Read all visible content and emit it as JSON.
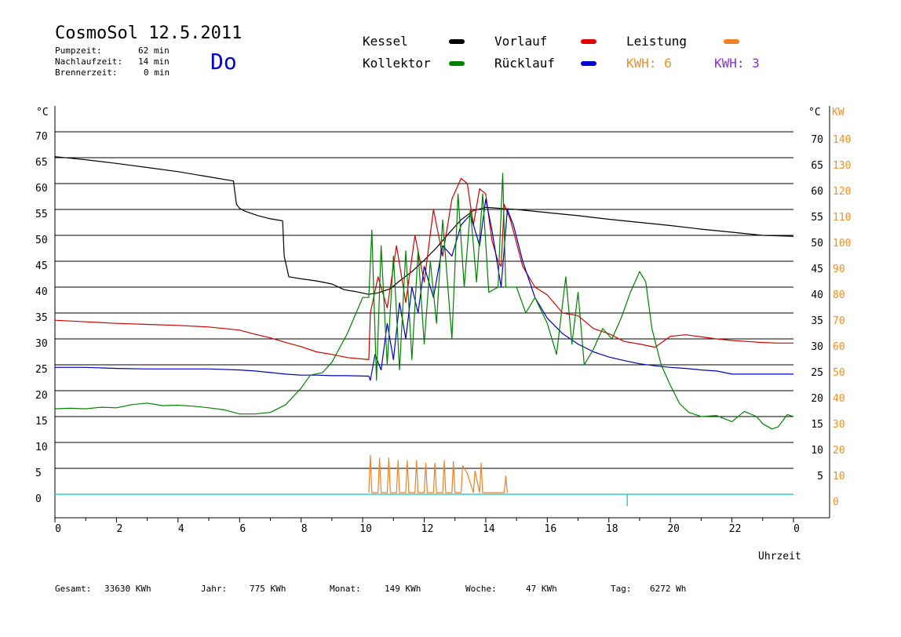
{
  "header": {
    "title": "CosmoSol 12.5.2011",
    "stats": [
      {
        "label": "Pumpzeit:",
        "value": "62 min"
      },
      {
        "label": "Nachlaufzeit:",
        "value": "14 min"
      },
      {
        "label": "Brennerzeit:",
        "value": "0 min"
      }
    ],
    "weekday": "Do"
  },
  "legend": {
    "kessel": {
      "label": "Kessel",
      "color": "#000000"
    },
    "vorlauf": {
      "label": "Vorlauf",
      "color": "#e00000"
    },
    "leistung": {
      "label": "Leistung",
      "color": "#f08020"
    },
    "kollektor": {
      "label": "Kollektor",
      "color": "#008000"
    },
    "ruecklauf": {
      "label": "Rücklauf",
      "color": "#0000d0"
    },
    "kwh_orange": "KWH: 6",
    "kwh_purple": "KWH: 3"
  },
  "colors": {
    "kwh_orange": "#e8902a",
    "kwh_purple": "#8a2be2",
    "baseline": "#30d0d0",
    "grid": "#000000"
  },
  "footer": {
    "gesamt_label": "Gesamt:",
    "gesamt_value": "33630 KWh",
    "jahr_label": "Jahr:",
    "jahr_value": "775 KWh",
    "monat_label": "Monat:",
    "monat_value": "149 KWh",
    "woche_label": "Woche:",
    "woche_value": "47 KWh",
    "tag_label": "Tag:",
    "tag_value": "6272 Wh"
  },
  "chart_data": {
    "type": "line",
    "xlabel": "Uhrzeit",
    "left_unit": "°C",
    "right_unit_temp": "°C",
    "right_unit_power": "KW",
    "x_ticks": [
      "0",
      "2",
      "4",
      "6",
      "8",
      "10",
      "12",
      "14",
      "16",
      "18",
      "20",
      "22",
      "0"
    ],
    "xlim": [
      0,
      24
    ],
    "ylim": [
      0,
      70
    ],
    "left_ticks": [
      0,
      5,
      10,
      15,
      20,
      25,
      30,
      35,
      40,
      45,
      50,
      55,
      60,
      65,
      70
    ],
    "right_temp_ticks": [
      5,
      10,
      15,
      20,
      25,
      30,
      35,
      40,
      45,
      50,
      55,
      60,
      65,
      70
    ],
    "right_power_ticks": [
      0,
      10,
      20,
      30,
      40,
      50,
      60,
      70,
      80,
      90,
      100,
      110,
      120,
      130,
      140
    ],
    "series": [
      {
        "name": "Kessel",
        "color": "#000000",
        "x": [
          0,
          1,
          2,
          3,
          4,
          5,
          5.8,
          5.9,
          6.0,
          6.2,
          6.6,
          7.0,
          7.4,
          7.45,
          7.6,
          8.0,
          8.5,
          9.0,
          9.4,
          9.8,
          10.2,
          10.5,
          10.9,
          11.2,
          11.6,
          12.0,
          12.4,
          12.8,
          13.2,
          13.6,
          14.0,
          14.5,
          15,
          16,
          17,
          18,
          19,
          20,
          21,
          22,
          23,
          24
        ],
        "y": [
          65.2,
          64.6,
          63.9,
          63.1,
          62.3,
          61.3,
          60.5,
          56,
          55.2,
          54.6,
          53.8,
          53.2,
          52.8,
          46,
          42,
          41.6,
          41.2,
          40.6,
          39.5,
          39.1,
          38.6,
          38.9,
          39.7,
          41.2,
          43.0,
          45.2,
          47.6,
          50.4,
          53.0,
          54.8,
          55.4,
          55.2,
          55,
          54.4,
          53.8,
          53.1,
          52.5,
          51.9,
          51.2,
          50.6,
          50.0,
          49.8
        ]
      },
      {
        "name": "Vorlauf",
        "color": "#d00000",
        "x": [
          0,
          1,
          2,
          3,
          4,
          5,
          6,
          6.5,
          7,
          7.5,
          8,
          8.5,
          9,
          9.5,
          10.2,
          10.25,
          10.5,
          10.8,
          11.1,
          11.4,
          11.7,
          12.0,
          12.3,
          12.6,
          12.9,
          13.2,
          13.4,
          13.6,
          13.8,
          14.0,
          14.2,
          14.4,
          14.5,
          14.6,
          14.8,
          15.2,
          15.6,
          16,
          16.5,
          17,
          17.5,
          18,
          18.5,
          19,
          19.5,
          20,
          20.5,
          21,
          21.5,
          22,
          22.5,
          23,
          23.5,
          24
        ],
        "y": [
          33.6,
          33.3,
          33,
          32.8,
          32.6,
          32.3,
          31.7,
          30.9,
          30.2,
          29.3,
          28.5,
          27.5,
          27,
          26.4,
          26,
          35,
          42,
          36,
          48,
          37,
          50,
          41,
          55,
          46,
          57,
          61,
          60,
          52,
          59,
          58,
          49,
          45,
          44,
          56,
          53,
          44,
          40,
          38.5,
          35,
          34.5,
          32,
          31,
          29.5,
          29,
          28.4,
          30.5,
          30.8,
          30.4,
          30,
          29.7,
          29.5,
          29.3,
          29.2,
          29.2
        ]
      },
      {
        "name": "Rücklauf",
        "color": "#0000c0",
        "x": [
          0,
          1,
          2,
          3,
          4,
          5,
          6,
          6.5,
          7,
          7.5,
          8,
          8.5,
          9,
          9.5,
          10.2,
          10.25,
          10.4,
          10.6,
          10.8,
          11.0,
          11.2,
          11.4,
          11.6,
          11.8,
          12.0,
          12.3,
          12.6,
          12.9,
          13.2,
          13.5,
          13.8,
          14.0,
          14.2,
          14.5,
          14.7,
          14.9,
          15.2,
          15.6,
          16,
          16.5,
          17,
          17.5,
          18,
          18.5,
          19,
          19.5,
          20,
          20.5,
          21,
          21.5,
          22,
          22.5,
          23,
          23.5,
          24
        ],
        "y": [
          24.5,
          24.5,
          24.3,
          24.2,
          24.2,
          24.2,
          24.0,
          23.8,
          23.5,
          23.2,
          23,
          23,
          22.9,
          22.9,
          22.8,
          22,
          27,
          24,
          33,
          26,
          37,
          30,
          40,
          35,
          44,
          38,
          48,
          46,
          52,
          54,
          48,
          57,
          51,
          40,
          55,
          52,
          45,
          38,
          34,
          31,
          29,
          27.5,
          26.5,
          25.8,
          25.2,
          24.8,
          24.5,
          24.3,
          24,
          23.8,
          23.2,
          23.2,
          23.2,
          23.2,
          23.2
        ]
      },
      {
        "name": "Kollektor",
        "color": "#008000",
        "x": [
          0,
          0.5,
          1,
          1.5,
          2,
          2.5,
          3,
          3.5,
          4,
          4.5,
          5,
          5.5,
          6,
          6.5,
          7,
          7.5,
          8,
          8.3,
          8.7,
          9,
          9.5,
          10.0,
          10.2,
          10.3,
          10.45,
          10.6,
          10.8,
          11.0,
          11.2,
          11.4,
          11.6,
          11.8,
          12.0,
          12.2,
          12.4,
          12.6,
          12.9,
          13.1,
          13.3,
          13.5,
          13.7,
          13.9,
          14.1,
          14.4,
          14.55,
          14.65,
          14.75,
          15.0,
          15.3,
          15.6,
          16,
          16.3,
          16.6,
          16.8,
          17,
          17.2,
          17.5,
          17.8,
          18.1,
          18.4,
          18.7,
          19,
          19.2,
          19.4,
          19.7,
          20,
          20.3,
          20.6,
          21,
          21.5,
          22,
          22.4,
          22.8,
          23,
          23.3,
          23.5,
          23.8,
          24
        ],
        "y": [
          16.5,
          16.6,
          16.5,
          16.8,
          16.7,
          17.3,
          17.6,
          17.1,
          17.2,
          17.0,
          16.7,
          16.3,
          15.5,
          15.5,
          15.8,
          17.3,
          20.5,
          23,
          23.5,
          25.5,
          31,
          38,
          38,
          51,
          22,
          48,
          25,
          46,
          24,
          47,
          26,
          47,
          29,
          45,
          33,
          53,
          30,
          58,
          40,
          55,
          41,
          58,
          39,
          40,
          62,
          40,
          40,
          40,
          35,
          38,
          33,
          27,
          42,
          29,
          39,
          25,
          28,
          32,
          30,
          34,
          39,
          43,
          41,
          32,
          25,
          21,
          17.5,
          15.8,
          15,
          15.2,
          14,
          16,
          15,
          13.6,
          12.6,
          13.0,
          15.4,
          15.0
        ]
      },
      {
        "name": "Leistung",
        "color": "#f08020",
        "x": [
          10.2,
          10.25,
          10.3,
          10.5,
          10.55,
          10.6,
          10.8,
          10.85,
          10.9,
          11.1,
          11.15,
          11.2,
          11.4,
          11.45,
          11.5,
          11.7,
          11.75,
          11.8,
          12.0,
          12.05,
          12.1,
          12.3,
          12.35,
          12.4,
          12.6,
          12.65,
          12.7,
          12.9,
          12.95,
          13.0,
          13.2,
          13.25,
          13.4,
          13.6,
          13.65,
          13.8,
          13.85,
          13.9,
          14.6,
          14.65,
          14.7
        ],
        "y": [
          0.3,
          7.5,
          0.3,
          0.3,
          7,
          0.3,
          0.3,
          7,
          0.3,
          0.3,
          6.5,
          0.3,
          0.3,
          6.5,
          0.3,
          0.3,
          6.5,
          0.3,
          0.3,
          6,
          0.3,
          0.3,
          6,
          0.3,
          0.3,
          6.5,
          0.3,
          0.3,
          6.3,
          0.3,
          0.3,
          5.5,
          4,
          0.3,
          4.5,
          0.3,
          6,
          0.3,
          0.3,
          3.5,
          0.3
        ]
      }
    ]
  }
}
